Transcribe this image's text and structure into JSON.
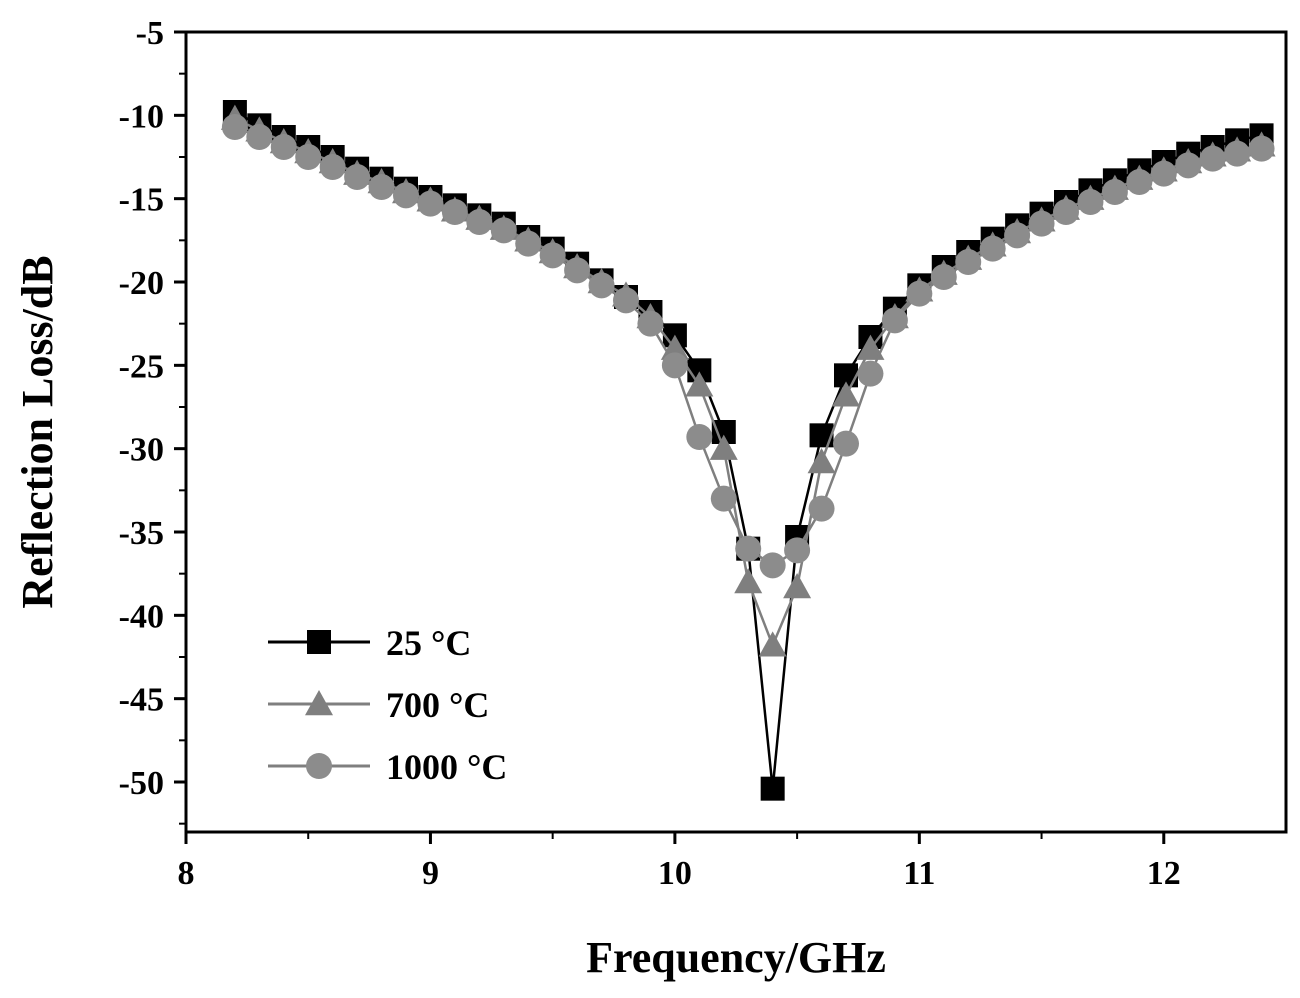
{
  "chart_data": {
    "type": "line",
    "xlabel": "Frequency/GHz",
    "ylabel": "Reflection Loss/dB",
    "xlim": [
      8,
      12.5
    ],
    "ylim": [
      -53,
      -5
    ],
    "xticks": [
      8,
      9,
      10,
      11,
      12
    ],
    "yticks": [
      -5,
      -10,
      -15,
      -20,
      -25,
      -30,
      -35,
      -40,
      -45,
      -50
    ],
    "grid": false,
    "legend_position": "bottom-left",
    "series": [
      {
        "name": "25 °C",
        "marker": "square",
        "color": "#000000",
        "marker_color": "#000000",
        "x": [
          8.2,
          8.3,
          8.4,
          8.5,
          8.6,
          8.7,
          8.8,
          8.9,
          9.0,
          9.1,
          9.2,
          9.3,
          9.4,
          9.5,
          9.6,
          9.7,
          9.8,
          9.9,
          10.0,
          10.1,
          10.2,
          10.3,
          10.4,
          10.5,
          10.6,
          10.7,
          10.8,
          10.9,
          11.0,
          11.1,
          11.2,
          11.3,
          11.4,
          11.5,
          11.6,
          11.7,
          11.8,
          11.9,
          12.0,
          12.1,
          12.2,
          12.3,
          12.4
        ],
        "y": [
          -9.8,
          -10.6,
          -11.3,
          -11.9,
          -12.5,
          -13.2,
          -13.8,
          -14.4,
          -14.9,
          -15.4,
          -16.0,
          -16.5,
          -17.3,
          -18.0,
          -18.9,
          -19.9,
          -20.9,
          -21.8,
          -23.2,
          -25.3,
          -29.0,
          -36.0,
          -50.4,
          -35.3,
          -29.2,
          -25.6,
          -23.3,
          -21.6,
          -20.2,
          -19.1,
          -18.2,
          -17.4,
          -16.6,
          -15.9,
          -15.2,
          -14.5,
          -13.9,
          -13.3,
          -12.8,
          -12.3,
          -11.9,
          -11.5,
          -11.2
        ]
      },
      {
        "name": "700 °C",
        "marker": "triangle",
        "color": "#7f7f7f",
        "marker_color": "#7f7f7f",
        "x": [
          8.2,
          8.3,
          8.4,
          8.5,
          8.6,
          8.7,
          8.8,
          8.9,
          9.0,
          9.1,
          9.2,
          9.3,
          9.4,
          9.5,
          9.6,
          9.7,
          9.8,
          9.9,
          10.0,
          10.1,
          10.2,
          10.3,
          10.4,
          10.5,
          10.6,
          10.7,
          10.8,
          10.9,
          11.0,
          11.1,
          11.2,
          11.3,
          11.4,
          11.5,
          11.6,
          11.7,
          11.8,
          11.9,
          12.0,
          12.1,
          12.2,
          12.3,
          12.4
        ],
        "y": [
          -10.2,
          -10.9,
          -11.6,
          -12.2,
          -12.8,
          -13.5,
          -14.0,
          -14.6,
          -15.1,
          -15.7,
          -16.2,
          -16.8,
          -17.5,
          -18.2,
          -19.1,
          -20.0,
          -20.8,
          -22.1,
          -24.0,
          -26.2,
          -30.0,
          -38.0,
          -41.8,
          -38.3,
          -30.8,
          -26.8,
          -24.0,
          -22.1,
          -20.5,
          -19.5,
          -18.6,
          -17.8,
          -17.0,
          -16.3,
          -15.6,
          -15.0,
          -14.4,
          -13.8,
          -13.3,
          -12.8,
          -12.4,
          -12.1,
          -11.8
        ]
      },
      {
        "name": "1000 °C",
        "marker": "circle",
        "color": "#7f7f7f",
        "marker_color": "#8c8c8c",
        "x": [
          8.2,
          8.3,
          8.4,
          8.5,
          8.6,
          8.7,
          8.8,
          8.9,
          9.0,
          9.1,
          9.2,
          9.3,
          9.4,
          9.5,
          9.6,
          9.7,
          9.8,
          9.9,
          10.0,
          10.1,
          10.2,
          10.3,
          10.4,
          10.5,
          10.6,
          10.7,
          10.8,
          10.9,
          11.0,
          11.1,
          11.2,
          11.3,
          11.4,
          11.5,
          11.6,
          11.7,
          11.8,
          11.9,
          12.0,
          12.1,
          12.2,
          12.3,
          12.4
        ],
        "y": [
          -10.7,
          -11.3,
          -11.9,
          -12.5,
          -13.1,
          -13.7,
          -14.3,
          -14.8,
          -15.3,
          -15.8,
          -16.4,
          -16.9,
          -17.7,
          -18.4,
          -19.3,
          -20.2,
          -21.1,
          -22.5,
          -25.0,
          -29.3,
          -33.0,
          -36.0,
          -37.0,
          -36.1,
          -33.6,
          -29.7,
          -25.5,
          -22.3,
          -20.7,
          -19.7,
          -18.8,
          -18.0,
          -17.2,
          -16.5,
          -15.8,
          -15.2,
          -14.6,
          -14.0,
          -13.5,
          -13.0,
          -12.6,
          -12.3,
          -12.0
        ]
      }
    ]
  }
}
